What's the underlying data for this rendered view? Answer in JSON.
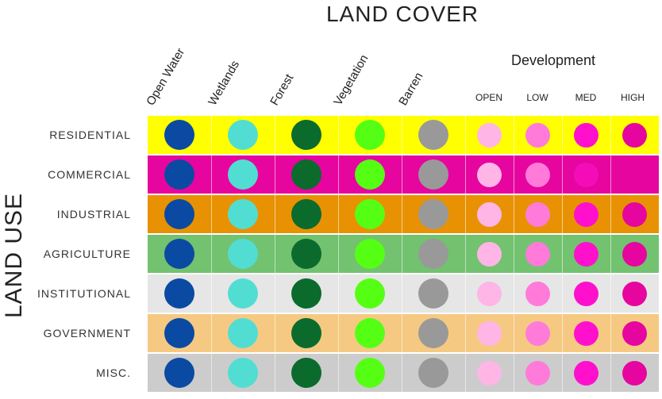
{
  "title": "LAND COVER",
  "side_title": "LAND USE",
  "columns": [
    {
      "label": "Open Water"
    },
    {
      "label": "Wetlands"
    },
    {
      "label": "Forest"
    },
    {
      "label": "Vegetation"
    },
    {
      "label": "Barren"
    }
  ],
  "development": {
    "title": "Development",
    "levels": [
      {
        "label": "OPEN"
      },
      {
        "label": "LOW"
      },
      {
        "label": "MED"
      },
      {
        "label": "HIGH"
      }
    ]
  },
  "dot_colors": [
    "#0b4aa2",
    "#52ddd2",
    "#0b6b2c",
    "#55ff14",
    "#999999",
    "#ffb5e6",
    "#ff7ad9",
    "#ff10cc",
    "#e6059f"
  ],
  "rows": [
    {
      "label": "RESIDENTIAL",
      "bg": "#ffff00",
      "dots": [
        true,
        true,
        true,
        true,
        true,
        true,
        true,
        true,
        true
      ],
      "med_faded": false
    },
    {
      "label": "COMMERCIAL",
      "bg": "#e6059f",
      "dots": [
        true,
        true,
        true,
        true,
        true,
        true,
        true,
        true,
        false
      ],
      "med_faded": true
    },
    {
      "label": "INDUSTRIAL",
      "bg": "#e89203",
      "dots": [
        true,
        true,
        true,
        true,
        true,
        true,
        true,
        true,
        true
      ],
      "med_faded": false
    },
    {
      "label": "AGRICULTURE",
      "bg": "#72c270",
      "dots": [
        true,
        true,
        true,
        true,
        true,
        true,
        true,
        true,
        true
      ],
      "med_faded": false
    },
    {
      "label": "INSTITUTIONAL",
      "bg": "#e6e6e6",
      "dots": [
        true,
        true,
        true,
        true,
        true,
        true,
        true,
        true,
        true
      ],
      "med_faded": false
    },
    {
      "label": "GOVERNMENT",
      "bg": "#f6c982",
      "dots": [
        true,
        true,
        true,
        true,
        true,
        true,
        true,
        true,
        true
      ],
      "med_faded": false
    },
    {
      "label": "MISC.",
      "bg": "#cccccc",
      "dots": [
        true,
        true,
        true,
        true,
        true,
        true,
        true,
        true,
        true
      ],
      "med_faded": false
    }
  ]
}
